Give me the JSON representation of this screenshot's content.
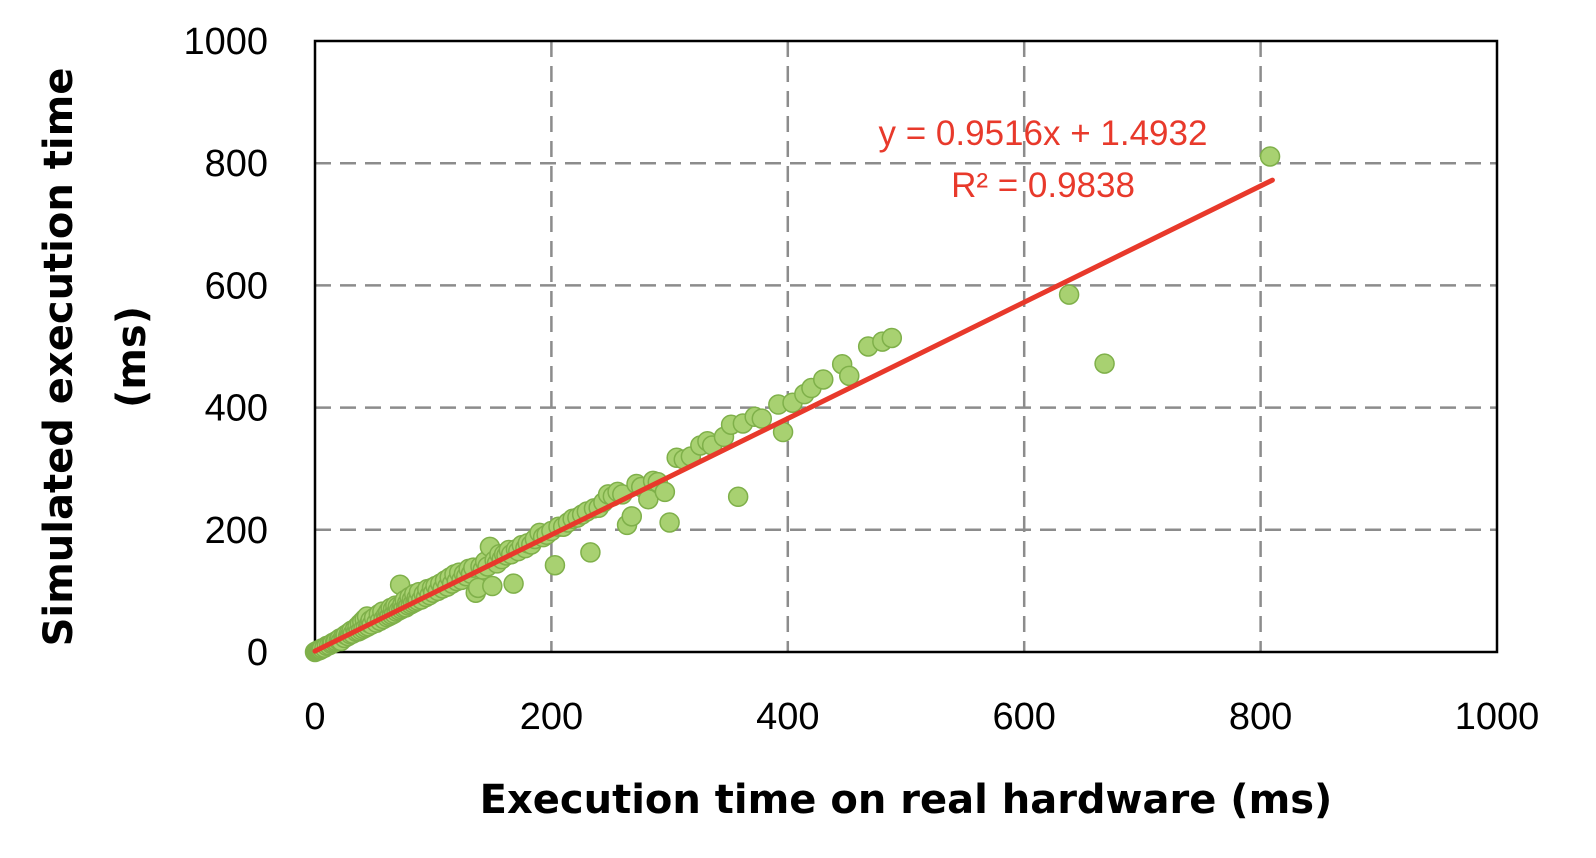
{
  "chart_data": {
    "type": "scatter",
    "xlabel": "Execution time on real hardware (ms)",
    "ylabel_lines": [
      "Simulated execution time",
      "(ms)"
    ],
    "xlim": [
      0,
      1000
    ],
    "ylim": [
      0,
      1000
    ],
    "xticks": [
      "0",
      "200",
      "400",
      "600",
      "800",
      "1000"
    ],
    "yticks": [
      "0",
      "200",
      "400",
      "600",
      "800",
      "1000"
    ],
    "grid": "dashed",
    "trendline": {
      "slope": 0.9516,
      "intercept": 1.4932,
      "x_range": [
        0,
        810
      ],
      "equation": "y = 0.9516x + 1.4932",
      "r_squared": "R² = 0.9838",
      "color": "#e8392b"
    },
    "marker_color": "#a8d171",
    "marker_edge": "#7fb04a",
    "points": [
      [
        0,
        0
      ],
      [
        1,
        1
      ],
      [
        2,
        2
      ],
      [
        3,
        3
      ],
      [
        4,
        3
      ],
      [
        5,
        4
      ],
      [
        6,
        6
      ],
      [
        8,
        7
      ],
      [
        10,
        10
      ],
      [
        12,
        11
      ],
      [
        14,
        13
      ],
      [
        15,
        15
      ],
      [
        17,
        16
      ],
      [
        18,
        18
      ],
      [
        20,
        19
      ],
      [
        21,
        22
      ],
      [
        22,
        18
      ],
      [
        24,
        25
      ],
      [
        25,
        23
      ],
      [
        26,
        28
      ],
      [
        28,
        26
      ],
      [
        29,
        32
      ],
      [
        30,
        29
      ],
      [
        31,
        35
      ],
      [
        32,
        30
      ],
      [
        34,
        38
      ],
      [
        35,
        33
      ],
      [
        36,
        42
      ],
      [
        37,
        34
      ],
      [
        38,
        46
      ],
      [
        39,
        36
      ],
      [
        40,
        50
      ],
      [
        41,
        38
      ],
      [
        42,
        54
      ],
      [
        43,
        40
      ],
      [
        44,
        58
      ],
      [
        45,
        42
      ],
      [
        46,
        47
      ],
      [
        47,
        52
      ],
      [
        48,
        45
      ],
      [
        50,
        56
      ],
      [
        52,
        48
      ],
      [
        54,
        62
      ],
      [
        55,
        51
      ],
      [
        57,
        66
      ],
      [
        58,
        54
      ],
      [
        60,
        60
      ],
      [
        61,
        57
      ],
      [
        62,
        66
      ],
      [
        63,
        59
      ],
      [
        64,
        72
      ],
      [
        65,
        61
      ],
      [
        66,
        70
      ],
      [
        67,
        63
      ],
      [
        68,
        76
      ],
      [
        69,
        66
      ],
      [
        70,
        74
      ],
      [
        71,
        68
      ],
      [
        72,
        110
      ],
      [
        73,
        70
      ],
      [
        74,
        78
      ],
      [
        75,
        72
      ],
      [
        76,
        85
      ],
      [
        77,
        73
      ],
      [
        78,
        80
      ],
      [
        79,
        76
      ],
      [
        80,
        90
      ],
      [
        81,
        78
      ],
      [
        82,
        86
      ],
      [
        83,
        80
      ],
      [
        84,
        95
      ],
      [
        85,
        82
      ],
      [
        86,
        88
      ],
      [
        87,
        84
      ],
      [
        88,
        98
      ],
      [
        90,
        86
      ],
      [
        92,
        95
      ],
      [
        94,
        90
      ],
      [
        95,
        103
      ],
      [
        97,
        93
      ],
      [
        99,
        105
      ],
      [
        100,
        97
      ],
      [
        102,
        108
      ],
      [
        104,
        100
      ],
      [
        106,
        112
      ],
      [
        108,
        104
      ],
      [
        110,
        117
      ],
      [
        112,
        107
      ],
      [
        114,
        122
      ],
      [
        116,
        112
      ],
      [
        118,
        127
      ],
      [
        120,
        116
      ],
      [
        122,
        130
      ],
      [
        124,
        118
      ],
      [
        126,
        128
      ],
      [
        128,
        124
      ],
      [
        130,
        136
      ],
      [
        132,
        128
      ],
      [
        134,
        138
      ],
      [
        136,
        97
      ],
      [
        138,
        105
      ],
      [
        140,
        140
      ],
      [
        142,
        135
      ],
      [
        144,
        148
      ],
      [
        146,
        140
      ],
      [
        148,
        172
      ],
      [
        150,
        108
      ],
      [
        152,
        150
      ],
      [
        154,
        145
      ],
      [
        156,
        160
      ],
      [
        158,
        152
      ],
      [
        160,
        160
      ],
      [
        162,
        158
      ],
      [
        164,
        167
      ],
      [
        166,
        160
      ],
      [
        168,
        112
      ],
      [
        170,
        168
      ],
      [
        172,
        165
      ],
      [
        175,
        175
      ],
      [
        178,
        170
      ],
      [
        180,
        178
      ],
      [
        183,
        176
      ],
      [
        186,
        185
      ],
      [
        190,
        195
      ],
      [
        193,
        188
      ],
      [
        196,
        192
      ],
      [
        200,
        198
      ],
      [
        203,
        142
      ],
      [
        206,
        205
      ],
      [
        210,
        205
      ],
      [
        214,
        212
      ],
      [
        218,
        218
      ],
      [
        222,
        220
      ],
      [
        226,
        225
      ],
      [
        230,
        230
      ],
      [
        233,
        163
      ],
      [
        236,
        235
      ],
      [
        240,
        236
      ],
      [
        244,
        245
      ],
      [
        248,
        258
      ],
      [
        252,
        255
      ],
      [
        256,
        262
      ],
      [
        260,
        258
      ],
      [
        264,
        208
      ],
      [
        268,
        222
      ],
      [
        272,
        275
      ],
      [
        276,
        270
      ],
      [
        282,
        250
      ],
      [
        286,
        280
      ],
      [
        290,
        278
      ],
      [
        296,
        262
      ],
      [
        300,
        212
      ],
      [
        306,
        318
      ],
      [
        312,
        315
      ],
      [
        318,
        320
      ],
      [
        326,
        338
      ],
      [
        332,
        345
      ],
      [
        336,
        338
      ],
      [
        346,
        352
      ],
      [
        352,
        372
      ],
      [
        358,
        254
      ],
      [
        362,
        374
      ],
      [
        372,
        385
      ],
      [
        378,
        382
      ],
      [
        392,
        405
      ],
      [
        396,
        360
      ],
      [
        404,
        408
      ],
      [
        414,
        422
      ],
      [
        420,
        432
      ],
      [
        430,
        446
      ],
      [
        446,
        471
      ],
      [
        452,
        452
      ],
      [
        468,
        500
      ],
      [
        480,
        508
      ],
      [
        488,
        514
      ],
      [
        638,
        585
      ],
      [
        668,
        472
      ],
      [
        808,
        811
      ]
    ]
  }
}
